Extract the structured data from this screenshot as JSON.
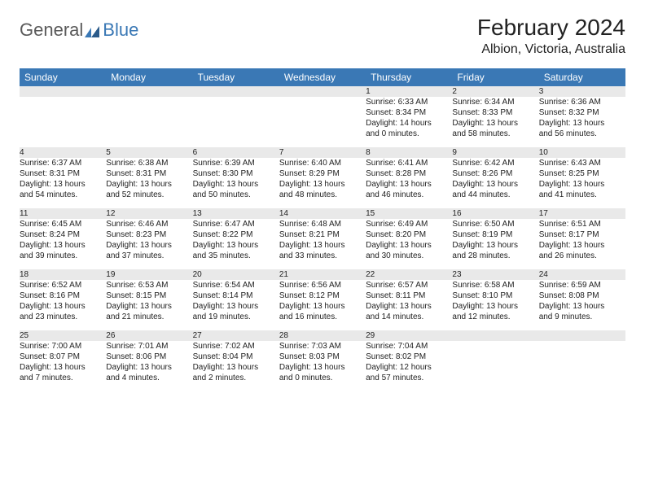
{
  "logo": {
    "word1": "General",
    "word2": "Blue"
  },
  "title": "February 2024",
  "location": "Albion, Victoria, Australia",
  "colors": {
    "header_bg": "#3a78b5",
    "header_text": "#ffffff",
    "daynum_bg": "#e9e9e9",
    "row_border": "#3a6f9e",
    "text": "#222222",
    "background": "#ffffff"
  },
  "day_headers": [
    "Sunday",
    "Monday",
    "Tuesday",
    "Wednesday",
    "Thursday",
    "Friday",
    "Saturday"
  ],
  "weeks": [
    [
      {
        "num": "",
        "sunrise": "",
        "sunset": "",
        "daylight1": "",
        "daylight2": ""
      },
      {
        "num": "",
        "sunrise": "",
        "sunset": "",
        "daylight1": "",
        "daylight2": ""
      },
      {
        "num": "",
        "sunrise": "",
        "sunset": "",
        "daylight1": "",
        "daylight2": ""
      },
      {
        "num": "",
        "sunrise": "",
        "sunset": "",
        "daylight1": "",
        "daylight2": ""
      },
      {
        "num": "1",
        "sunrise": "Sunrise: 6:33 AM",
        "sunset": "Sunset: 8:34 PM",
        "daylight1": "Daylight: 14 hours",
        "daylight2": "and 0 minutes."
      },
      {
        "num": "2",
        "sunrise": "Sunrise: 6:34 AM",
        "sunset": "Sunset: 8:33 PM",
        "daylight1": "Daylight: 13 hours",
        "daylight2": "and 58 minutes."
      },
      {
        "num": "3",
        "sunrise": "Sunrise: 6:36 AM",
        "sunset": "Sunset: 8:32 PM",
        "daylight1": "Daylight: 13 hours",
        "daylight2": "and 56 minutes."
      }
    ],
    [
      {
        "num": "4",
        "sunrise": "Sunrise: 6:37 AM",
        "sunset": "Sunset: 8:31 PM",
        "daylight1": "Daylight: 13 hours",
        "daylight2": "and 54 minutes."
      },
      {
        "num": "5",
        "sunrise": "Sunrise: 6:38 AM",
        "sunset": "Sunset: 8:31 PM",
        "daylight1": "Daylight: 13 hours",
        "daylight2": "and 52 minutes."
      },
      {
        "num": "6",
        "sunrise": "Sunrise: 6:39 AM",
        "sunset": "Sunset: 8:30 PM",
        "daylight1": "Daylight: 13 hours",
        "daylight2": "and 50 minutes."
      },
      {
        "num": "7",
        "sunrise": "Sunrise: 6:40 AM",
        "sunset": "Sunset: 8:29 PM",
        "daylight1": "Daylight: 13 hours",
        "daylight2": "and 48 minutes."
      },
      {
        "num": "8",
        "sunrise": "Sunrise: 6:41 AM",
        "sunset": "Sunset: 8:28 PM",
        "daylight1": "Daylight: 13 hours",
        "daylight2": "and 46 minutes."
      },
      {
        "num": "9",
        "sunrise": "Sunrise: 6:42 AM",
        "sunset": "Sunset: 8:26 PM",
        "daylight1": "Daylight: 13 hours",
        "daylight2": "and 44 minutes."
      },
      {
        "num": "10",
        "sunrise": "Sunrise: 6:43 AM",
        "sunset": "Sunset: 8:25 PM",
        "daylight1": "Daylight: 13 hours",
        "daylight2": "and 41 minutes."
      }
    ],
    [
      {
        "num": "11",
        "sunrise": "Sunrise: 6:45 AM",
        "sunset": "Sunset: 8:24 PM",
        "daylight1": "Daylight: 13 hours",
        "daylight2": "and 39 minutes."
      },
      {
        "num": "12",
        "sunrise": "Sunrise: 6:46 AM",
        "sunset": "Sunset: 8:23 PM",
        "daylight1": "Daylight: 13 hours",
        "daylight2": "and 37 minutes."
      },
      {
        "num": "13",
        "sunrise": "Sunrise: 6:47 AM",
        "sunset": "Sunset: 8:22 PM",
        "daylight1": "Daylight: 13 hours",
        "daylight2": "and 35 minutes."
      },
      {
        "num": "14",
        "sunrise": "Sunrise: 6:48 AM",
        "sunset": "Sunset: 8:21 PM",
        "daylight1": "Daylight: 13 hours",
        "daylight2": "and 33 minutes."
      },
      {
        "num": "15",
        "sunrise": "Sunrise: 6:49 AM",
        "sunset": "Sunset: 8:20 PM",
        "daylight1": "Daylight: 13 hours",
        "daylight2": "and 30 minutes."
      },
      {
        "num": "16",
        "sunrise": "Sunrise: 6:50 AM",
        "sunset": "Sunset: 8:19 PM",
        "daylight1": "Daylight: 13 hours",
        "daylight2": "and 28 minutes."
      },
      {
        "num": "17",
        "sunrise": "Sunrise: 6:51 AM",
        "sunset": "Sunset: 8:17 PM",
        "daylight1": "Daylight: 13 hours",
        "daylight2": "and 26 minutes."
      }
    ],
    [
      {
        "num": "18",
        "sunrise": "Sunrise: 6:52 AM",
        "sunset": "Sunset: 8:16 PM",
        "daylight1": "Daylight: 13 hours",
        "daylight2": "and 23 minutes."
      },
      {
        "num": "19",
        "sunrise": "Sunrise: 6:53 AM",
        "sunset": "Sunset: 8:15 PM",
        "daylight1": "Daylight: 13 hours",
        "daylight2": "and 21 minutes."
      },
      {
        "num": "20",
        "sunrise": "Sunrise: 6:54 AM",
        "sunset": "Sunset: 8:14 PM",
        "daylight1": "Daylight: 13 hours",
        "daylight2": "and 19 minutes."
      },
      {
        "num": "21",
        "sunrise": "Sunrise: 6:56 AM",
        "sunset": "Sunset: 8:12 PM",
        "daylight1": "Daylight: 13 hours",
        "daylight2": "and 16 minutes."
      },
      {
        "num": "22",
        "sunrise": "Sunrise: 6:57 AM",
        "sunset": "Sunset: 8:11 PM",
        "daylight1": "Daylight: 13 hours",
        "daylight2": "and 14 minutes."
      },
      {
        "num": "23",
        "sunrise": "Sunrise: 6:58 AM",
        "sunset": "Sunset: 8:10 PM",
        "daylight1": "Daylight: 13 hours",
        "daylight2": "and 12 minutes."
      },
      {
        "num": "24",
        "sunrise": "Sunrise: 6:59 AM",
        "sunset": "Sunset: 8:08 PM",
        "daylight1": "Daylight: 13 hours",
        "daylight2": "and 9 minutes."
      }
    ],
    [
      {
        "num": "25",
        "sunrise": "Sunrise: 7:00 AM",
        "sunset": "Sunset: 8:07 PM",
        "daylight1": "Daylight: 13 hours",
        "daylight2": "and 7 minutes."
      },
      {
        "num": "26",
        "sunrise": "Sunrise: 7:01 AM",
        "sunset": "Sunset: 8:06 PM",
        "daylight1": "Daylight: 13 hours",
        "daylight2": "and 4 minutes."
      },
      {
        "num": "27",
        "sunrise": "Sunrise: 7:02 AM",
        "sunset": "Sunset: 8:04 PM",
        "daylight1": "Daylight: 13 hours",
        "daylight2": "and 2 minutes."
      },
      {
        "num": "28",
        "sunrise": "Sunrise: 7:03 AM",
        "sunset": "Sunset: 8:03 PM",
        "daylight1": "Daylight: 13 hours",
        "daylight2": "and 0 minutes."
      },
      {
        "num": "29",
        "sunrise": "Sunrise: 7:04 AM",
        "sunset": "Sunset: 8:02 PM",
        "daylight1": "Daylight: 12 hours",
        "daylight2": "and 57 minutes."
      },
      {
        "num": "",
        "sunrise": "",
        "sunset": "",
        "daylight1": "",
        "daylight2": ""
      },
      {
        "num": "",
        "sunrise": "",
        "sunset": "",
        "daylight1": "",
        "daylight2": ""
      }
    ]
  ]
}
